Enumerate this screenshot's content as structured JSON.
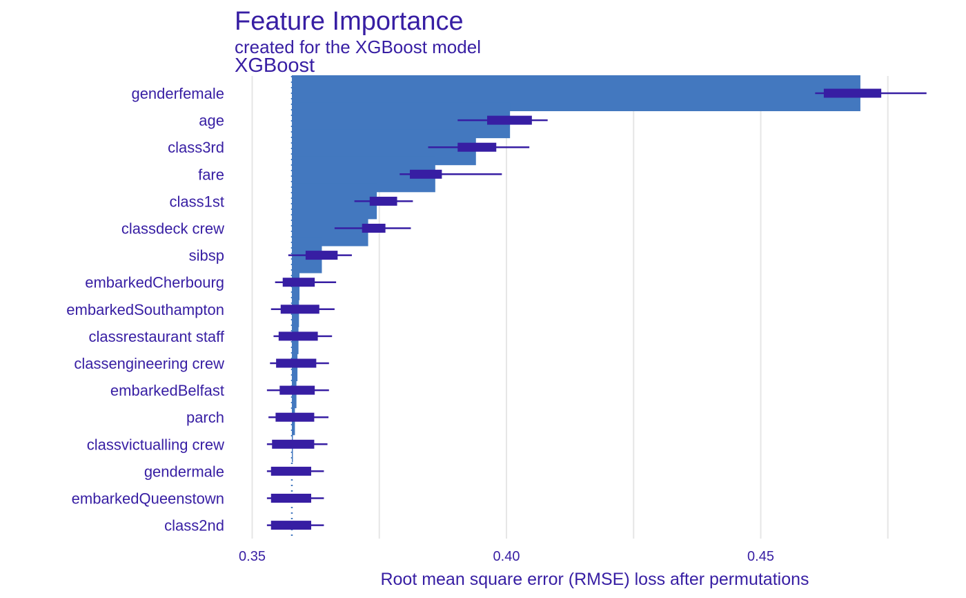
{
  "chart_data": {
    "type": "bar",
    "title": "Feature Importance",
    "subtitle": "created for the XGBoost model",
    "facet_label": "XGBoost",
    "xlabel": "Root mean square error (RMSE) loss after permutations",
    "ylabel": "",
    "xlim": [
      0.35,
      0.48
    ],
    "xticks": [
      0.35,
      0.4,
      0.45
    ],
    "xtick_labels": [
      "0.35",
      "0.40",
      "0.45"
    ],
    "grid": true,
    "baseline": 0.3578,
    "bar_color": "#4378bf",
    "boxplot_color": "#371ea3",
    "text_color": "#371ea3",
    "grid_color": "#e6e6e6",
    "categories": [
      "genderfemale",
      "age",
      "class3rd",
      "fare",
      "class1st",
      "classdeck crew",
      "sibsp",
      "embarkedCherbourg",
      "embarkedSouthampton",
      "classrestaurant staff",
      "classengineering crew",
      "embarkedBelfast",
      "parch",
      "classvictualling crew",
      "gendermale",
      "embarkedQueenstown",
      "class2nd"
    ],
    "values": [
      0.4696,
      0.4007,
      0.394,
      0.386,
      0.3745,
      0.3728,
      0.3637,
      0.3593,
      0.3592,
      0.3591,
      0.3589,
      0.3587,
      0.3584,
      0.358,
      0.3578,
      0.3578,
      0.3578
    ],
    "boxplots": [
      {
        "min": 0.4607,
        "q1": 0.4624,
        "q3": 0.4737,
        "max": 0.4826
      },
      {
        "min": 0.3904,
        "q1": 0.3962,
        "q3": 0.405,
        "max": 0.4081
      },
      {
        "min": 0.3846,
        "q1": 0.3904,
        "q3": 0.398,
        "max": 0.4045
      },
      {
        "min": 0.379,
        "q1": 0.381,
        "q3": 0.3873,
        "max": 0.3991
      },
      {
        "min": 0.3701,
        "q1": 0.3731,
        "q3": 0.3785,
        "max": 0.3816
      },
      {
        "min": 0.3662,
        "q1": 0.3716,
        "q3": 0.3762,
        "max": 0.3812
      },
      {
        "min": 0.3571,
        "q1": 0.3605,
        "q3": 0.3668,
        "max": 0.3696
      },
      {
        "min": 0.3545,
        "q1": 0.356,
        "q3": 0.3623,
        "max": 0.3665
      },
      {
        "min": 0.3537,
        "q1": 0.3556,
        "q3": 0.3632,
        "max": 0.3662
      },
      {
        "min": 0.3542,
        "q1": 0.3552,
        "q3": 0.3629,
        "max": 0.3657
      },
      {
        "min": 0.3535,
        "q1": 0.3547,
        "q3": 0.3626,
        "max": 0.3651
      },
      {
        "min": 0.3529,
        "q1": 0.3554,
        "q3": 0.3623,
        "max": 0.3651
      },
      {
        "min": 0.3532,
        "q1": 0.3546,
        "q3": 0.3622,
        "max": 0.365
      },
      {
        "min": 0.3529,
        "q1": 0.3539,
        "q3": 0.3622,
        "max": 0.3648
      },
      {
        "min": 0.3529,
        "q1": 0.3537,
        "q3": 0.3616,
        "max": 0.3641
      },
      {
        "min": 0.3529,
        "q1": 0.3537,
        "q3": 0.3616,
        "max": 0.3641
      },
      {
        "min": 0.3529,
        "q1": 0.3537,
        "q3": 0.3616,
        "max": 0.3641
      }
    ]
  }
}
